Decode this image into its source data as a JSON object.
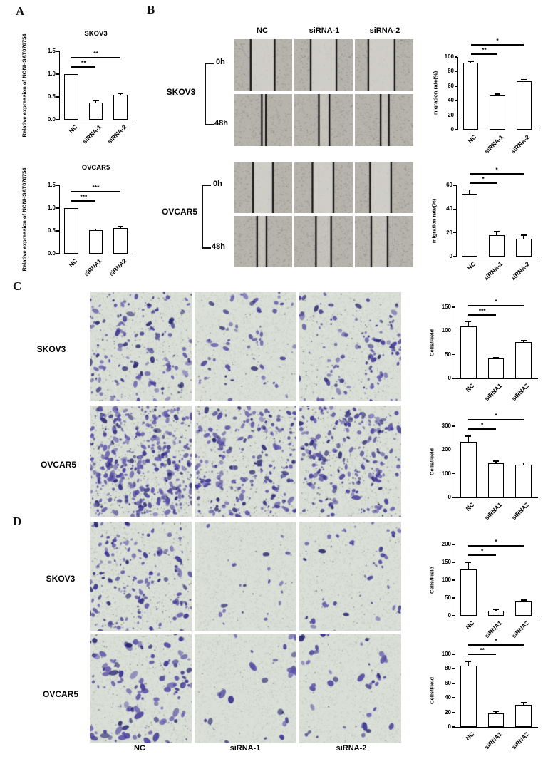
{
  "panels": {
    "A": {
      "label": "A"
    },
    "B": {
      "label": "B",
      "col_headers": [
        "NC",
        "siRNA-1",
        "siRNA-2"
      ],
      "groups": [
        {
          "cell_line": "SKOV3",
          "time_labels": [
            "0h",
            "48h"
          ],
          "images": [
            {
              "row": "0h",
              "col": "NC",
              "lines": [
                0.29,
                0.7
              ]
            },
            {
              "row": "0h",
              "col": "siRNA-1",
              "lines": [
                0.28,
                0.72
              ]
            },
            {
              "row": "0h",
              "col": "siRNA-2",
              "lines": [
                0.23,
                0.68
              ]
            },
            {
              "row": "48h",
              "col": "NC",
              "lines": [
                0.48,
                0.55
              ]
            },
            {
              "row": "48h",
              "col": "siRNA-1",
              "lines": [
                0.42,
                0.6
              ]
            },
            {
              "row": "48h",
              "col": "siRNA-2",
              "lines": [
                0.44,
                0.58
              ]
            }
          ]
        },
        {
          "cell_line": "OVCAR5",
          "time_labels": [
            "0h",
            "48h"
          ],
          "images": [
            {
              "row": "0h",
              "col": "NC",
              "lines": [
                0.33,
                0.67
              ]
            },
            {
              "row": "0h",
              "col": "siRNA-1",
              "lines": [
                0.31,
                0.67
              ]
            },
            {
              "row": "0h",
              "col": "siRNA-2",
              "lines": [
                0.26,
                0.62
              ]
            },
            {
              "row": "48h",
              "col": "NC",
              "lines": [
                0.4,
                0.56
              ]
            },
            {
              "row": "48h",
              "col": "siRNA-1",
              "lines": [
                0.37,
                0.63
              ]
            },
            {
              "row": "48h",
              "col": "siRNA-2",
              "lines": [
                0.28,
                0.56
              ]
            }
          ]
        }
      ]
    },
    "C": {
      "label": "C",
      "rows": [
        {
          "cell_line": "SKOV3"
        },
        {
          "cell_line": "OVCAR5"
        }
      ]
    },
    "D": {
      "label": "D",
      "rows": [
        {
          "cell_line": "SKOV3"
        },
        {
          "cell_line": "OVCAR5"
        }
      ],
      "col_footers": [
        "NC",
        "siRNA-1",
        "siRNA-2"
      ]
    }
  },
  "chart_data": [
    {
      "id": "A-SKOV3",
      "panel": "A",
      "type": "bar",
      "title": "SKOV3",
      "ylabel": "Relative expression of NONHSAT076754",
      "categories": [
        "NC",
        "siRNA-1",
        "siRNA-2"
      ],
      "values": [
        1.0,
        0.37,
        0.55
      ],
      "errors": [
        0,
        0.05,
        0.03
      ],
      "ylim": [
        0,
        1.5
      ],
      "yticks": [
        0,
        0.5,
        1.0,
        1.5
      ],
      "ytick_decimals": 1,
      "significance": [
        {
          "from": 0,
          "to": 1,
          "label": "**"
        },
        {
          "from": 0,
          "to": 2,
          "label": "**"
        }
      ]
    },
    {
      "id": "A-OVCAR5",
      "panel": "A",
      "type": "bar",
      "title": "OVCAR5",
      "ylabel": "Relative expression of NONHSAT076754",
      "categories": [
        "NC",
        "siRNA1",
        "siRNA2"
      ],
      "values": [
        1.0,
        0.52,
        0.57
      ],
      "errors": [
        0,
        0.02,
        0.02
      ],
      "ylim": [
        0,
        1.5
      ],
      "yticks": [
        0,
        0.5,
        1.0,
        1.5
      ],
      "ytick_decimals": 1,
      "significance": [
        {
          "from": 0,
          "to": 1,
          "label": "***"
        },
        {
          "from": 0,
          "to": 2,
          "label": "***"
        }
      ]
    },
    {
      "id": "B-SKOV3",
      "panel": "B",
      "type": "bar",
      "title": "",
      "ylabel": "migration rate(%)",
      "categories": [
        "NC",
        "siRNA-1",
        "siRNA-2"
      ],
      "values": [
        92,
        47,
        67
      ],
      "errors": [
        2,
        2,
        2
      ],
      "ylim": [
        0,
        100
      ],
      "yticks": [
        0,
        20,
        40,
        60,
        80,
        100
      ],
      "ytick_decimals": 0,
      "significance": [
        {
          "from": 0,
          "to": 1,
          "label": "**"
        },
        {
          "from": 0,
          "to": 2,
          "label": "*"
        }
      ]
    },
    {
      "id": "B-OVCAR5",
      "panel": "B",
      "type": "bar",
      "title": "",
      "ylabel": "migration rate(%)",
      "categories": [
        "NC",
        "siRNA-1",
        "siRNA-2"
      ],
      "values": [
        53,
        18,
        15
      ],
      "errors": [
        3,
        3,
        3
      ],
      "ylim": [
        0,
        60
      ],
      "yticks": [
        0,
        20,
        40,
        60
      ],
      "ytick_decimals": 0,
      "significance": [
        {
          "from": 0,
          "to": 1,
          "label": "*"
        },
        {
          "from": 0,
          "to": 2,
          "label": "*"
        }
      ]
    },
    {
      "id": "C-SKOV3",
      "panel": "C",
      "type": "bar",
      "title": "",
      "ylabel": "Cells/Field",
      "categories": [
        "NC",
        "siRNA1",
        "siRNA2"
      ],
      "values": [
        109,
        42,
        77
      ],
      "errors": [
        10,
        2,
        3
      ],
      "ylim": [
        0,
        150
      ],
      "yticks": [
        0,
        50,
        100,
        150
      ],
      "ytick_decimals": 0,
      "significance": [
        {
          "from": 0,
          "to": 1,
          "label": "***"
        },
        {
          "from": 0,
          "to": 2,
          "label": "*"
        }
      ]
    },
    {
      "id": "C-OVCAR5",
      "panel": "C",
      "type": "bar",
      "title": "",
      "ylabel": "Cells/Field",
      "categories": [
        "NC",
        "siRNA1",
        "siRNA2"
      ],
      "values": [
        233,
        143,
        137
      ],
      "errors": [
        25,
        10,
        8
      ],
      "ylim": [
        0,
        300
      ],
      "yticks": [
        0,
        100,
        200,
        300
      ],
      "ytick_decimals": 0,
      "significance": [
        {
          "from": 0,
          "to": 1,
          "label": "*"
        },
        {
          "from": 0,
          "to": 2,
          "label": "*"
        }
      ]
    },
    {
      "id": "D-SKOV3",
      "panel": "D",
      "type": "bar",
      "title": "",
      "ylabel": "Cells/Field",
      "categories": [
        "NC",
        "siRNA1",
        "siRNA2"
      ],
      "values": [
        130,
        15,
        40
      ],
      "errors": [
        20,
        3,
        4
      ],
      "ylim": [
        0,
        200
      ],
      "yticks": [
        0,
        50,
        100,
        150,
        200
      ],
      "ytick_decimals": 0,
      "significance": [
        {
          "from": 0,
          "to": 1,
          "label": "*"
        },
        {
          "from": 0,
          "to": 2,
          "label": "*"
        }
      ]
    },
    {
      "id": "D-OVCAR5",
      "panel": "D",
      "type": "bar",
      "title": "",
      "ylabel": "Cells/Field",
      "categories": [
        "NC",
        "siRNA1",
        "siRNA2"
      ],
      "values": [
        84,
        19,
        30
      ],
      "errors": [
        6,
        2,
        4
      ],
      "ylim": [
        0,
        100
      ],
      "yticks": [
        0,
        20,
        40,
        60,
        80,
        100
      ],
      "ytick_decimals": 0,
      "significance": [
        {
          "from": 0,
          "to": 1,
          "label": "**"
        },
        {
          "from": 0,
          "to": 2,
          "label": "*"
        }
      ]
    }
  ],
  "colors": {
    "bar_fill": "#ffffff",
    "bar_border": "#000000",
    "wound_bg": "#b6b3ac",
    "transwell_bg": "#d9ded6",
    "stain_purple": "#4a3f9b"
  }
}
